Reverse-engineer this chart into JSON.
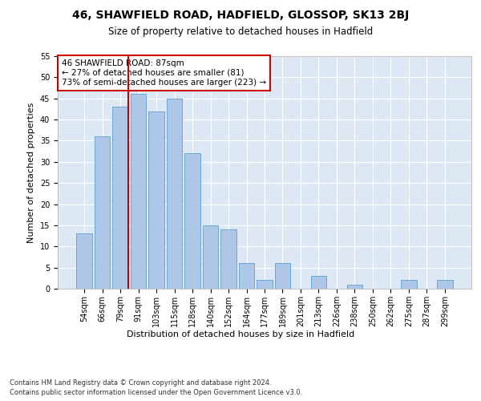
{
  "title": "46, SHAWFIELD ROAD, HADFIELD, GLOSSOP, SK13 2BJ",
  "subtitle": "Size of property relative to detached houses in Hadfield",
  "xlabel": "Distribution of detached houses by size in Hadfield",
  "ylabel": "Number of detached properties",
  "footer_line1": "Contains HM Land Registry data © Crown copyright and database right 2024.",
  "footer_line2": "Contains public sector information licensed under the Open Government Licence v3.0.",
  "annotation_line1": "46 SHAWFIELD ROAD: 87sqm",
  "annotation_line2": "← 27% of detached houses are smaller (81)",
  "annotation_line3": "73% of semi-detached houses are larger (223) →",
  "categories": [
    "54sqm",
    "66sqm",
    "79sqm",
    "91sqm",
    "103sqm",
    "115sqm",
    "128sqm",
    "140sqm",
    "152sqm",
    "164sqm",
    "177sqm",
    "189sqm",
    "201sqm",
    "213sqm",
    "226sqm",
    "238sqm",
    "250sqm",
    "262sqm",
    "275sqm",
    "287sqm",
    "299sqm"
  ],
  "values": [
    13,
    36,
    43,
    46,
    42,
    45,
    32,
    15,
    14,
    6,
    2,
    6,
    0,
    3,
    0,
    1,
    0,
    0,
    2,
    0,
    2
  ],
  "bar_color": "#aec6e8",
  "bar_edge_color": "#5a9fd4",
  "vline_color": "#cc0000",
  "bg_color": "#dce9f5",
  "grid_color": "#ffffff",
  "ylim": [
    0,
    55
  ],
  "yticks": [
    0,
    5,
    10,
    15,
    20,
    25,
    30,
    35,
    40,
    45,
    50,
    55
  ],
  "annotation_box_color": "#cc0000",
  "title_fontsize": 10,
  "subtitle_fontsize": 8.5,
  "axis_label_fontsize": 8,
  "tick_fontsize": 7,
  "annotation_fontsize": 7.5,
  "footer_fontsize": 6
}
